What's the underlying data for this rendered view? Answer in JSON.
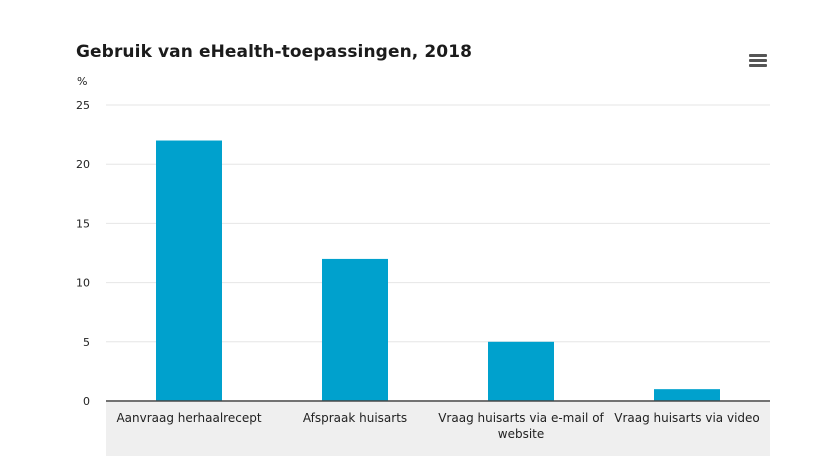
{
  "chart_data": {
    "type": "bar",
    "title": "Gebruik van eHealth-toepassingen, 2018",
    "ylabel": "%",
    "xlabel": "",
    "categories": [
      [
        "Aanvraag herhaalrecept"
      ],
      [
        "Afspraak huisarts"
      ],
      [
        "Vraag huisarts via e-mail of",
        "website"
      ],
      [
        "Vraag huisarts via video"
      ]
    ],
    "values": [
      22,
      12,
      5,
      1
    ],
    "ylim": [
      0,
      25
    ],
    "yticks": [
      0,
      5,
      10,
      15,
      20,
      25
    ],
    "grid": true,
    "legend": "none",
    "colors": {
      "bar": "#00a1cd",
      "grid": "#e6e6e6",
      "axis": "#444444",
      "category_band": "#efefef"
    }
  },
  "toolbar": {
    "menu_icon": "hamburger-menu-icon"
  }
}
